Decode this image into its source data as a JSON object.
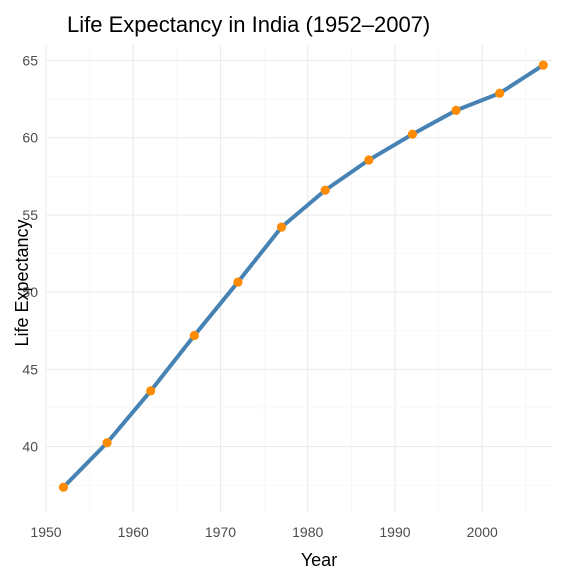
{
  "chart_data": {
    "type": "line",
    "title": "Life Expectancy in India (1952–2007)",
    "xlabel": "Year",
    "ylabel": "Life Expectancy",
    "x": [
      1952,
      1957,
      1962,
      1967,
      1972,
      1977,
      1982,
      1987,
      1992,
      1997,
      2002,
      2007
    ],
    "series": [
      {
        "values": [
          37.37,
          40.249,
          43.605,
          47.193,
          50.651,
          54.208,
          56.596,
          58.553,
          60.223,
          61.765,
          62.879,
          64.698
        ]
      }
    ],
    "xlim": [
      1950,
      2008
    ],
    "ylim": [
      35.7,
      66.0
    ],
    "x_ticks": [
      "1950",
      "1960",
      "1970",
      "1980",
      "1990",
      "2000"
    ],
    "y_ticks": [
      "40",
      "45",
      "50",
      "55",
      "60",
      "65"
    ],
    "grid": true,
    "legend": "none",
    "colors": {
      "line": "#4682b4",
      "points": "#ff8c00",
      "grid": "#ebebeb"
    }
  }
}
